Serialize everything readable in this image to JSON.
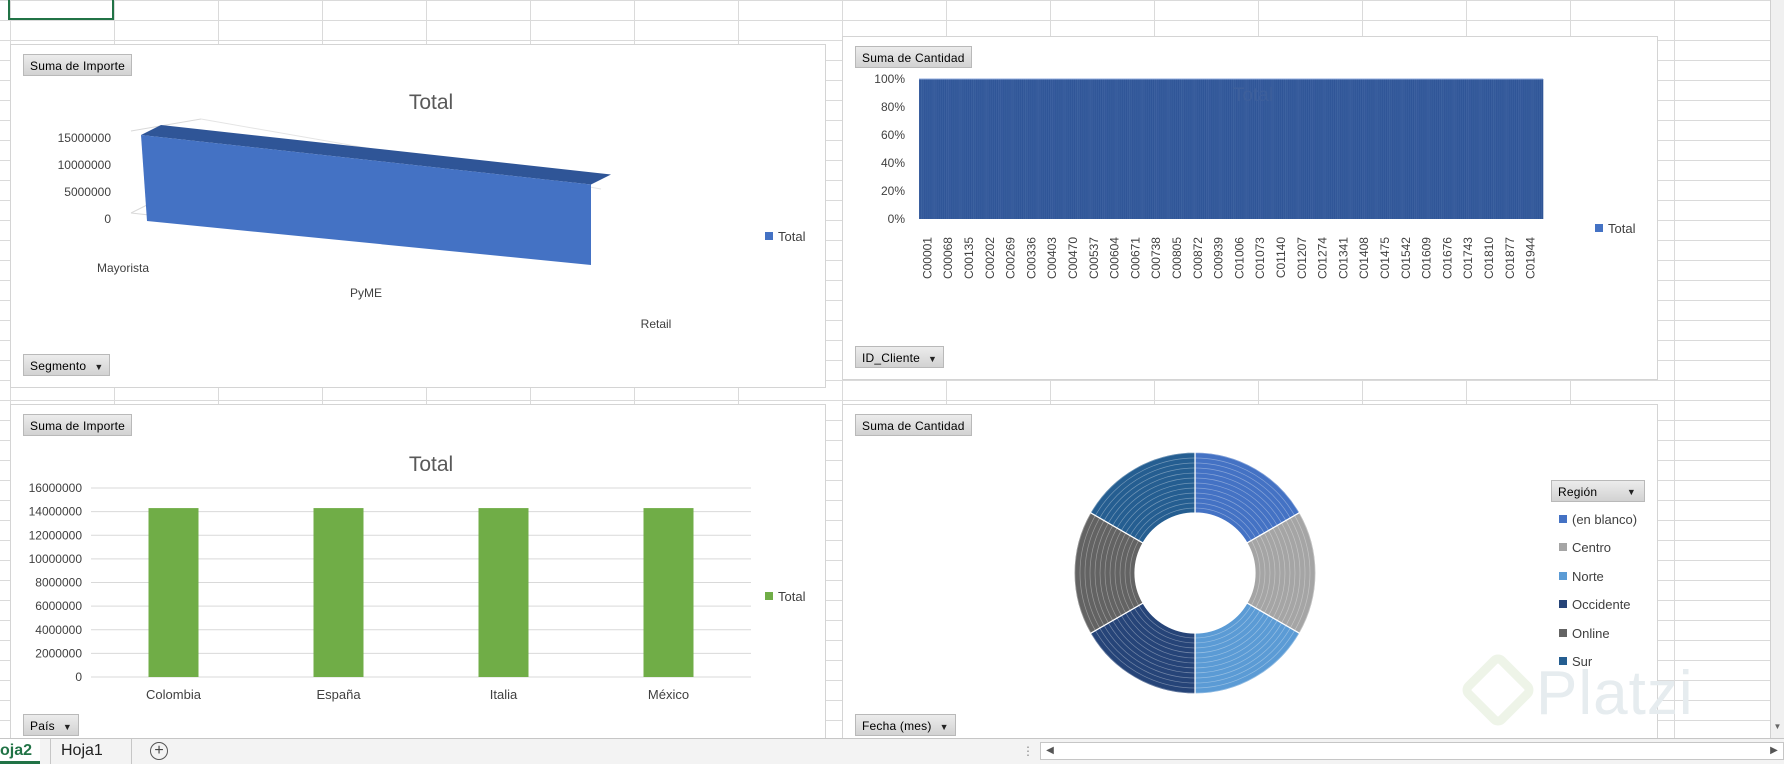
{
  "sheet_tabs": [
    {
      "label": "oja2",
      "active": true
    },
    {
      "label": "Hoja1",
      "active": false
    }
  ],
  "add_sheet_label": "+",
  "watermark": "Platzi",
  "charts": [
    {
      "value_field": "Suma de Importe",
      "axis_field": "Segmento",
      "title": "Total",
      "legend": [
        "Total"
      ]
    },
    {
      "value_field": "Suma de Cantidad",
      "axis_field": "ID_Cliente",
      "title": "Total",
      "legend": [
        "Total"
      ]
    },
    {
      "value_field": "Suma de Importe",
      "axis_field": "País",
      "title": "Total",
      "legend": [
        "Total"
      ]
    },
    {
      "value_field": "Suma de Cantidad",
      "axis_field": "Fecha (mes)",
      "legend_field": "Región",
      "title": ""
    }
  ],
  "chart_data": [
    {
      "type": "bar",
      "variant": "3d-area",
      "title": "Total",
      "categories": [
        "Mayorista",
        "PyME",
        "Retail"
      ],
      "series": [
        {
          "name": "Total",
          "values": [
            15000000,
            14500000,
            14000000
          ]
        }
      ],
      "y_ticks": [
        "15000000",
        "10000000",
        "5000000",
        "0"
      ],
      "ylim": [
        0,
        15000000
      ],
      "legend": "right",
      "color": "#4472c4"
    },
    {
      "type": "bar",
      "variant": "100%-stacked",
      "title": "Total",
      "categories": [
        "C00001",
        "C00068",
        "C00135",
        "C00202",
        "C00269",
        "C00336",
        "C00403",
        "C00470",
        "C00537",
        "C00604",
        "C00671",
        "C00738",
        "C00805",
        "C00872",
        "C00939",
        "C01006",
        "C01073",
        "C01140",
        "C01207",
        "C01274",
        "C01341",
        "C01408",
        "C01475",
        "C01542",
        "C01609",
        "C01676",
        "C01743",
        "C01810",
        "C01877",
        "C01944"
      ],
      "series": [
        {
          "name": "Total",
          "values": [
            1,
            1,
            1,
            1,
            1,
            1,
            1,
            1,
            1,
            1,
            1,
            1,
            1,
            1,
            1,
            1,
            1,
            1,
            1,
            1,
            1,
            1,
            1,
            1,
            1,
            1,
            1,
            1,
            1,
            1
          ]
        }
      ],
      "y_ticks": [
        "100%",
        "80%",
        "60%",
        "40%",
        "20%",
        "0%"
      ],
      "ylim": [
        0,
        1
      ],
      "legend": "right",
      "color": "#2f5597"
    },
    {
      "type": "bar",
      "title": "Total",
      "categories": [
        "Colombia",
        "España",
        "Italia",
        "México"
      ],
      "series": [
        {
          "name": "Total",
          "values": [
            14300000,
            14300000,
            14300000,
            14300000
          ]
        }
      ],
      "y_ticks": [
        "16000000",
        "14000000",
        "12000000",
        "10000000",
        "8000000",
        "6000000",
        "4000000",
        "2000000",
        "0"
      ],
      "ylim": [
        0,
        16000000
      ],
      "grid": true,
      "legend": "right",
      "color": "#70ad47"
    },
    {
      "type": "pie",
      "variant": "donut",
      "title": "",
      "categories": [
        "(en blanco)",
        "Centro",
        "Norte",
        "Occidente",
        "Online",
        "Sur"
      ],
      "values": [
        1,
        1,
        1,
        1,
        1,
        1
      ],
      "colors": [
        "#4472c4",
        "#a5a5a5",
        "#5b9bd5",
        "#264478",
        "#636363",
        "#255e91"
      ],
      "legend": "right"
    }
  ]
}
